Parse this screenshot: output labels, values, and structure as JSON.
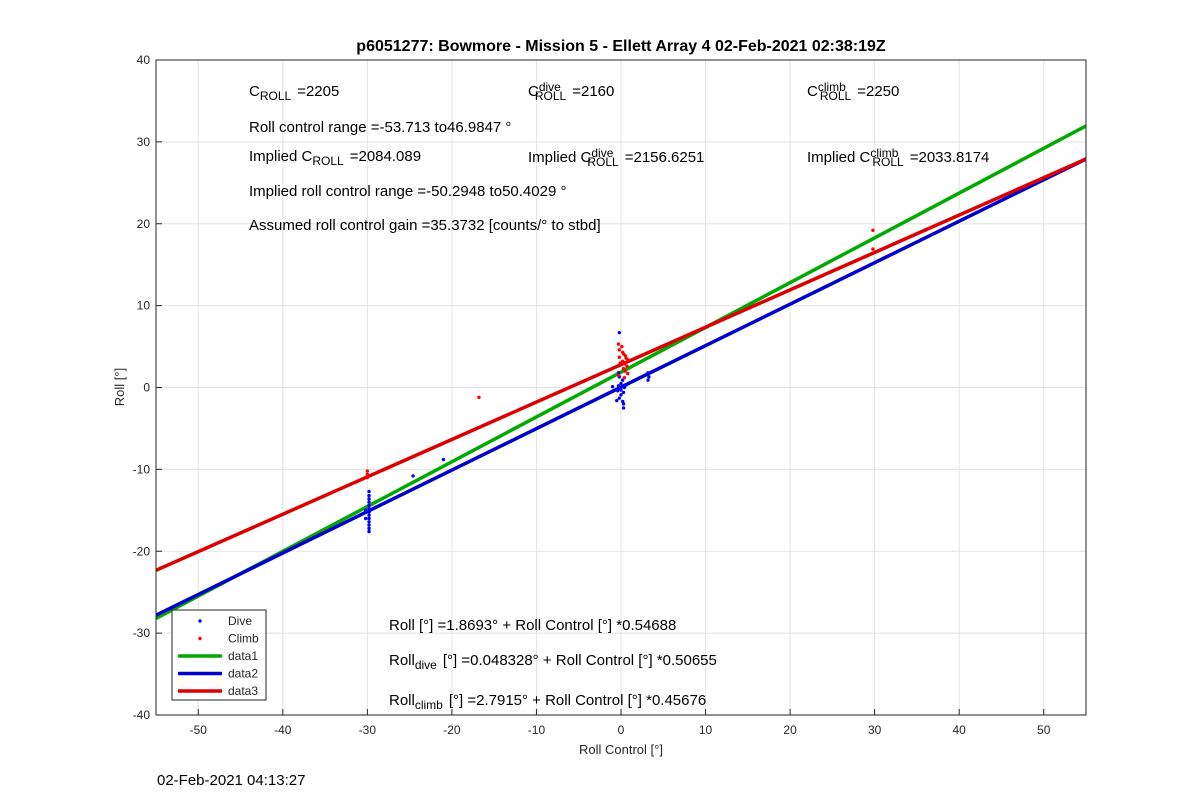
{
  "chart_data": {
    "type": "scatter",
    "title": "p6051277: Bowmore - Mission 5 - Ellett Array 4 02-Feb-2021 02:38:19Z",
    "xlabel": "Roll Control [°]",
    "ylabel": "Roll [°]",
    "xlim": [
      -55,
      55
    ],
    "ylim": [
      -40,
      40
    ],
    "xticks": [
      -50,
      -40,
      -30,
      -20,
      -10,
      0,
      10,
      20,
      30,
      40,
      50
    ],
    "yticks": [
      -40,
      -30,
      -20,
      -10,
      0,
      10,
      20,
      30,
      40
    ],
    "grid": true,
    "legend_position": "bottom-left",
    "series": [
      {
        "name": "Dive",
        "kind": "points",
        "color": "#0000ff",
        "points": [
          [
            -29.8,
            -12.7
          ],
          [
            -29.8,
            -13.2
          ],
          [
            -29.8,
            -13.6
          ],
          [
            -29.8,
            -14.0
          ],
          [
            -29.8,
            -14.4
          ],
          [
            -29.8,
            -14.8
          ],
          [
            -29.8,
            -15.2
          ],
          [
            -29.8,
            -15.6
          ],
          [
            -29.8,
            -16.0
          ],
          [
            -29.8,
            -16.4
          ],
          [
            -29.8,
            -16.8
          ],
          [
            -29.8,
            -17.2
          ],
          [
            -29.8,
            -17.6
          ],
          [
            -30.2,
            -15.0
          ],
          [
            -30.2,
            -16.0
          ],
          [
            -24.6,
            -10.8
          ],
          [
            -21.0,
            -8.8
          ],
          [
            -0.2,
            6.7
          ],
          [
            -0.3,
            1.8
          ],
          [
            -0.2,
            1.3
          ],
          [
            0.2,
            0.9
          ],
          [
            0.0,
            0.5
          ],
          [
            -0.3,
            0.2
          ],
          [
            0.4,
            0.0
          ],
          [
            0.0,
            -0.3
          ],
          [
            -0.4,
            -0.4
          ],
          [
            0.3,
            -0.6
          ],
          [
            0.0,
            -0.9
          ],
          [
            -0.2,
            -1.3
          ],
          [
            0.2,
            -1.7
          ],
          [
            0.3,
            -2.0
          ],
          [
            0.3,
            -2.5
          ],
          [
            -0.5,
            -1.6
          ],
          [
            0.6,
            0.3
          ],
          [
            3.2,
            1.8
          ],
          [
            3.3,
            1.3
          ],
          [
            3.2,
            0.9
          ],
          [
            -1.0,
            0.1
          ]
        ]
      },
      {
        "name": "Climb",
        "kind": "points",
        "color": "#ff0000",
        "points": [
          [
            -30.0,
            -10.2
          ],
          [
            -30.0,
            -10.6
          ],
          [
            -30.0,
            -11.0
          ],
          [
            -16.8,
            -1.2
          ],
          [
            -0.3,
            5.3
          ],
          [
            0.1,
            5.0
          ],
          [
            -0.2,
            4.6
          ],
          [
            0.2,
            4.3
          ],
          [
            0.3,
            4.1
          ],
          [
            0.5,
            3.9
          ],
          [
            -0.2,
            3.7
          ],
          [
            0.6,
            3.6
          ],
          [
            0.8,
            3.4
          ],
          [
            0.2,
            3.2
          ],
          [
            -0.1,
            3.0
          ],
          [
            0.4,
            2.9
          ],
          [
            0.7,
            2.6
          ],
          [
            0.3,
            2.3
          ],
          [
            0.5,
            2.0
          ],
          [
            0.8,
            1.7
          ],
          [
            -0.3,
            1.5
          ],
          [
            0.4,
            1.2
          ],
          [
            29.8,
            19.2
          ],
          [
            29.8,
            16.9
          ]
        ]
      },
      {
        "name": "data1",
        "kind": "line",
        "color": "#00aa00",
        "intercept": 1.8693,
        "slope": 0.54688
      },
      {
        "name": "data2",
        "kind": "line",
        "color": "#0000cc",
        "intercept": 0.048328,
        "slope": 0.50655
      },
      {
        "name": "data3",
        "kind": "line",
        "color": "#dd0000",
        "intercept": 2.7915,
        "slope": 0.45676
      }
    ],
    "annotations": [
      {
        "parts": [
          [
            "C",
            ""
          ],
          [
            "ROLL",
            "sub"
          ],
          [
            "=2205",
            ""
          ]
        ]
      },
      {
        "parts": [
          [
            "C",
            ""
          ],
          [
            "dive",
            "sup"
          ],
          [
            "ROLL",
            "sub"
          ],
          [
            "=2160",
            ""
          ]
        ]
      },
      {
        "parts": [
          [
            "C",
            ""
          ],
          [
            "climb",
            "sup"
          ],
          [
            "ROLL",
            "sub"
          ],
          [
            "=2250",
            ""
          ]
        ]
      },
      {
        "parts": [
          [
            "Roll control range =-53.713 to46.9847 °",
            ""
          ]
        ]
      },
      {
        "parts": [
          [
            "Implied C",
            ""
          ],
          [
            "ROLL",
            "sub"
          ],
          [
            "=2084.089",
            ""
          ]
        ]
      },
      {
        "parts": [
          [
            "Implied C",
            ""
          ],
          [
            "dive",
            "sup"
          ],
          [
            "ROLL",
            "sub"
          ],
          [
            "=2156.6251",
            ""
          ]
        ]
      },
      {
        "parts": [
          [
            "Implied C",
            ""
          ],
          [
            "climb",
            "sup"
          ],
          [
            "ROLL",
            "sub"
          ],
          [
            "=2033.8174",
            ""
          ]
        ]
      },
      {
        "parts": [
          [
            "Implied roll control range =-50.2948 to50.4029 °",
            ""
          ]
        ]
      },
      {
        "parts": [
          [
            "Assumed roll control gain =35.3732 [counts/° to stbd]",
            ""
          ]
        ]
      },
      {
        "parts": [
          [
            "Roll [°] =1.8693° + Roll Control [°] *0.54688",
            ""
          ]
        ]
      },
      {
        "parts": [
          [
            "Roll",
            ""
          ],
          [
            "dive",
            "sub"
          ],
          [
            "[°] =0.048328° + Roll Control [°] *0.50655",
            ""
          ]
        ]
      },
      {
        "parts": [
          [
            "Roll",
            ""
          ],
          [
            "climb",
            "sub"
          ],
          [
            "[°] =2.7915° + Roll Control [°] *0.45676",
            ""
          ]
        ]
      }
    ]
  },
  "timestamp": "02-Feb-2021 04:13:27"
}
